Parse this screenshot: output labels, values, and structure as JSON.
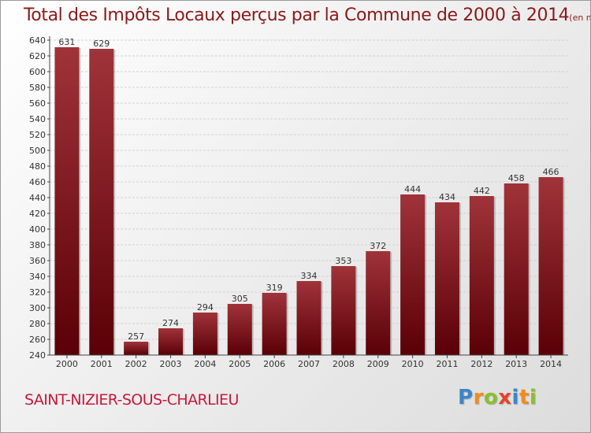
{
  "title": "Total des Impôts Locaux perçus par la Commune de 2000 à 2014",
  "unit": "(en milliers d'€)",
  "commune": "SAINT-NIZIER-SOUS-CHARLIEU",
  "logo": {
    "letters": [
      "P",
      "r",
      "o",
      "x",
      "i",
      "t",
      "i"
    ],
    "colors": [
      "#3a86c8",
      "#f28c1c",
      "#8bbf2a",
      "#e8412c",
      "#3a86c8",
      "#f28c1c",
      "#8bbf2a"
    ]
  },
  "colors": {
    "bar_top": "#a0333a",
    "bar_bottom": "#5a0006",
    "title": "#8b1a1a",
    "commune": "#c8183c"
  },
  "chart_data": {
    "type": "bar",
    "title": "Total des Impôts Locaux perçus par la Commune de 2000 à 2014",
    "ylabel": "en milliers d'€",
    "xlabel": "",
    "categories": [
      "2000",
      "2001",
      "2002",
      "2003",
      "2004",
      "2005",
      "2006",
      "2007",
      "2008",
      "2009",
      "2010",
      "2011",
      "2012",
      "2013",
      "2014"
    ],
    "values": [
      631,
      629,
      257,
      274,
      294,
      305,
      319,
      334,
      353,
      372,
      444,
      434,
      442,
      458,
      466
    ],
    "ylim": [
      240,
      640
    ],
    "yticks": [
      240,
      260,
      280,
      300,
      320,
      340,
      360,
      380,
      400,
      420,
      440,
      460,
      480,
      500,
      520,
      540,
      560,
      580,
      600,
      620,
      640
    ],
    "grid": true
  }
}
